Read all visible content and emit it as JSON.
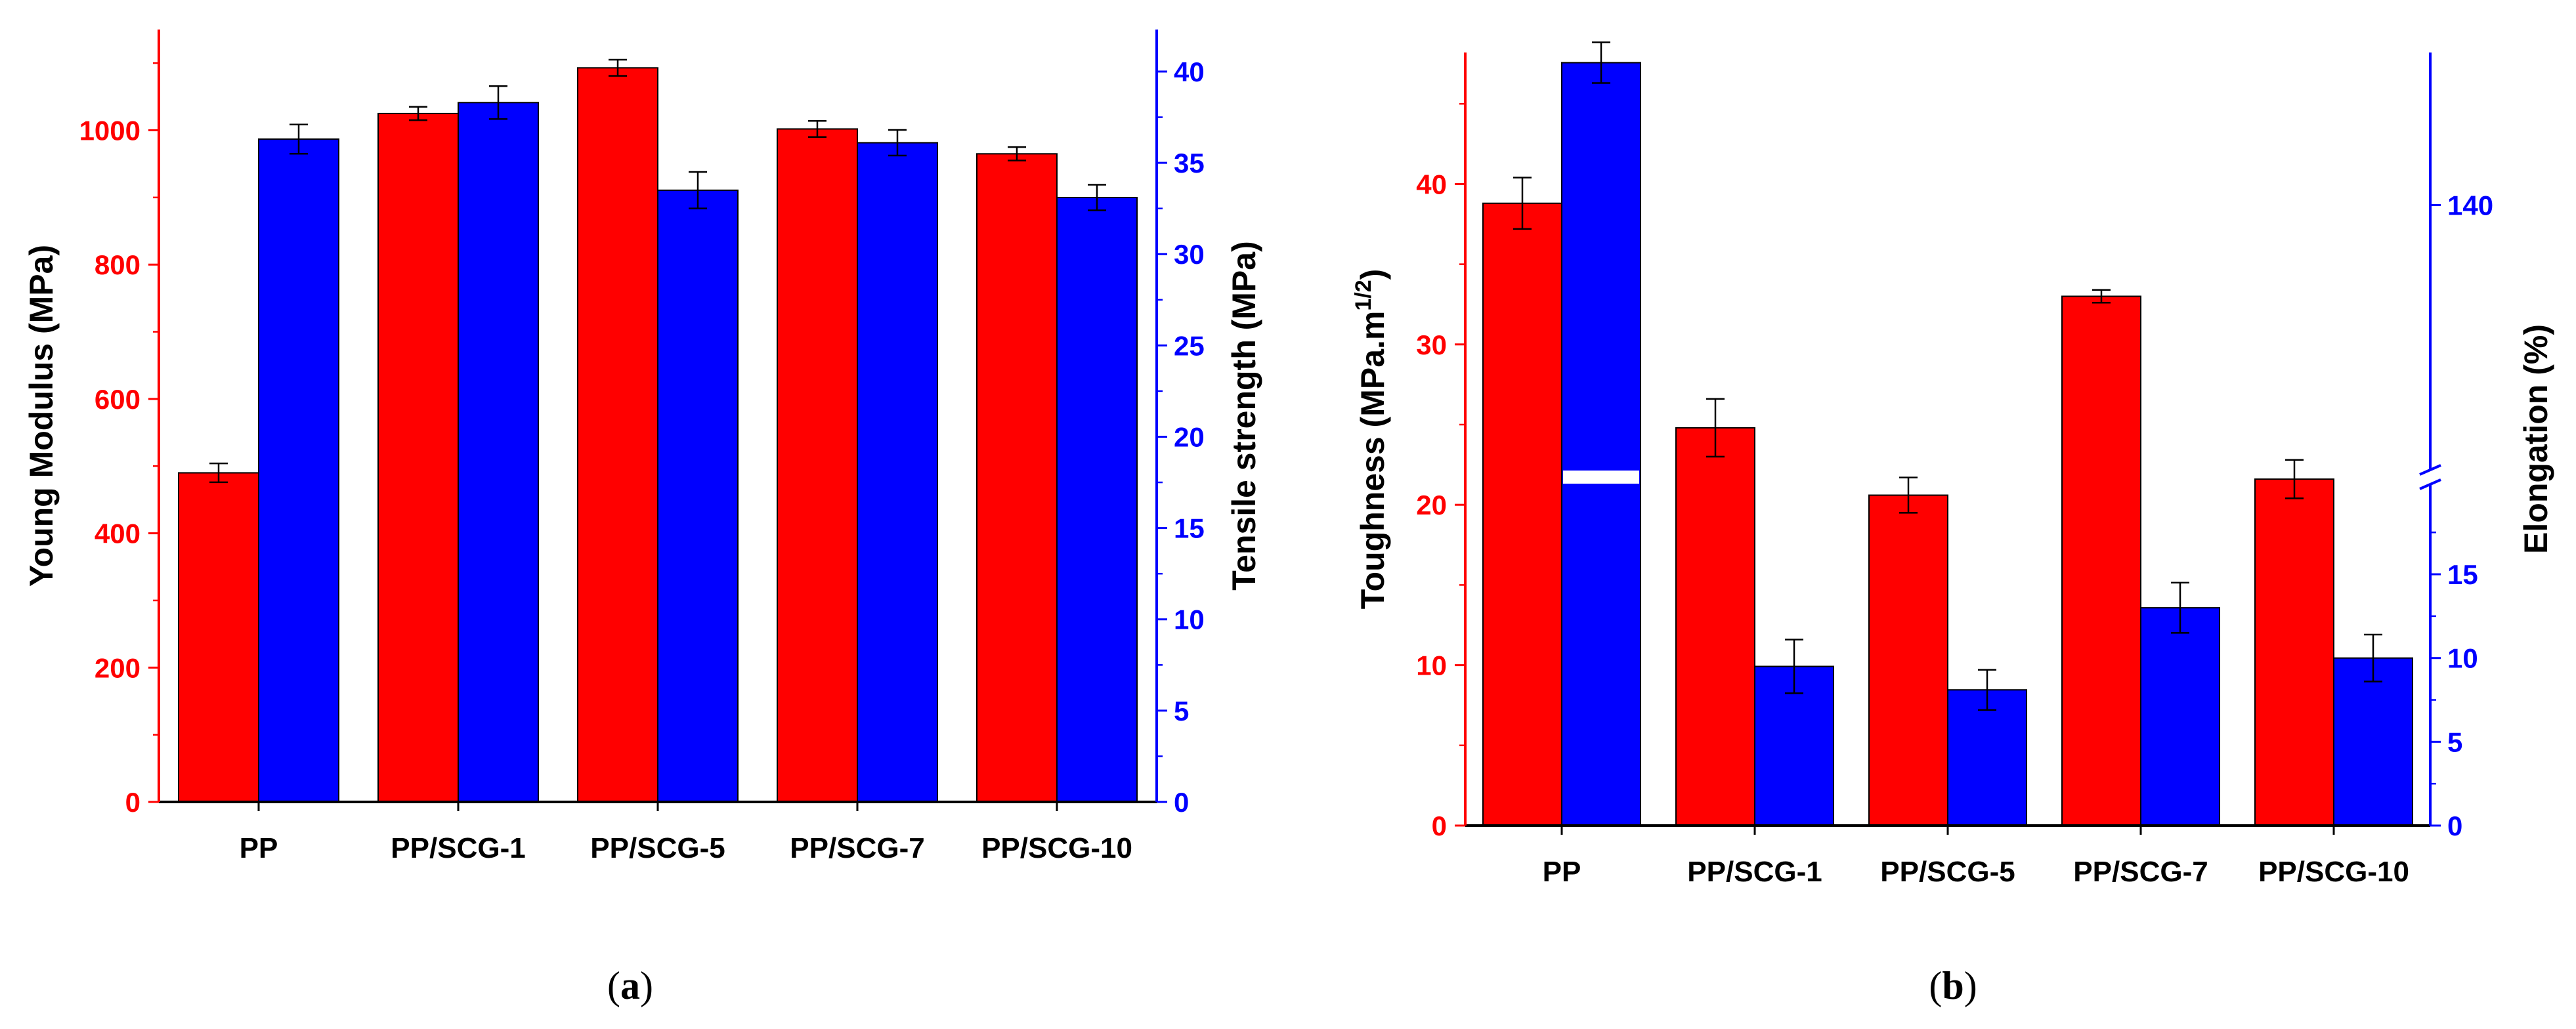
{
  "colors": {
    "red": "#ff0000",
    "blue": "#0000ff",
    "axis": "#000000"
  },
  "panels": {
    "a": {
      "label_open": "(",
      "label_letter": "a",
      "label_close": ")"
    },
    "b": {
      "label_open": "(",
      "label_letter": "b",
      "label_close": ")"
    }
  },
  "chart_data": [
    {
      "type": "bar",
      "panel": "a",
      "categories": [
        "PP",
        "PP/SCG-1",
        "PP/SCG-5",
        "PP/SCG-7",
        "PP/SCG-10"
      ],
      "y_left": {
        "label": "Young Modulus (MPa)",
        "lim": [
          0,
          1150
        ],
        "ticks": [
          0,
          200,
          400,
          600,
          800,
          1000
        ],
        "color": "red"
      },
      "y_right": {
        "label": "Tensile strength (MPa)",
        "lim": [
          0,
          42.3
        ],
        "ticks": [
          0,
          5,
          10,
          15,
          20,
          25,
          30,
          35,
          40
        ],
        "color": "blue"
      },
      "series": [
        {
          "axis": "left",
          "color": "red",
          "values": [
            490,
            1025,
            1093,
            1002,
            965
          ],
          "errors": [
            14,
            10,
            12,
            12,
            10
          ]
        },
        {
          "axis": "right",
          "color": "blue",
          "values": [
            36.3,
            38.3,
            33.5,
            36.1,
            33.1
          ],
          "errors": [
            0.8,
            0.9,
            1.0,
            0.7,
            0.7
          ]
        }
      ]
    },
    {
      "type": "bar",
      "panel": "b",
      "categories": [
        "PP",
        "PP/SCG-1",
        "PP/SCG-5",
        "PP/SCG-7",
        "PP/SCG-10"
      ],
      "y_left": {
        "label_main": "Toughness (MPa.m",
        "label_sup": "1/2",
        "label_end": ")",
        "lim": [
          0,
          48.2
        ],
        "ticks": [
          0,
          10,
          20,
          30,
          40
        ],
        "color": "red"
      },
      "y_right": {
        "label": "Elongation (%)",
        "broken": true,
        "lower_lim": [
          0,
          20.8
        ],
        "lower_ticks": [
          0,
          5,
          10,
          15
        ],
        "upper_ticks": [
          140
        ],
        "upper_lim": [
          118.6,
          152
        ],
        "color": "blue"
      },
      "series": [
        {
          "axis": "left",
          "color": "red",
          "values": [
            38.8,
            24.8,
            20.6,
            33.0,
            21.6
          ],
          "errors": [
            1.6,
            1.8,
            1.1,
            0.4,
            1.2
          ]
        },
        {
          "axis": "right",
          "color": "blue",
          "values": [
            151.2,
            9.5,
            8.1,
            13.0,
            10.0
          ],
          "errors": [
            1.6,
            1.6,
            1.2,
            1.5,
            1.4
          ]
        }
      ]
    }
  ]
}
